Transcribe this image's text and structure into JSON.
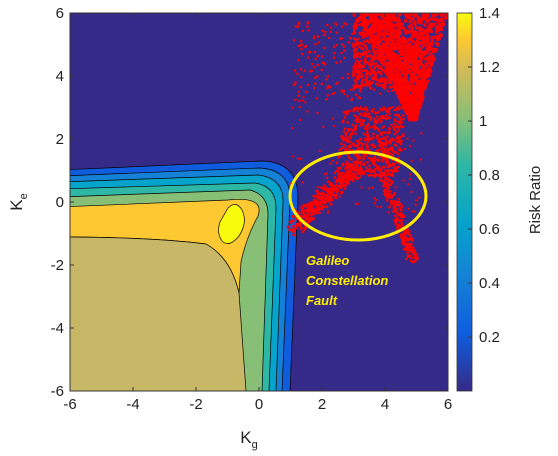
{
  "chart_data": {
    "type": "heatmap",
    "plot": "filled contour with scatter overlay",
    "xlabel_main": "K",
    "xlabel_sub": "g",
    "ylabel_main": "K",
    "ylabel_sub": "e",
    "xlim": [
      -6,
      6
    ],
    "ylim": [
      -6,
      6
    ],
    "x_ticks": [
      "-6",
      "-4",
      "-2",
      "0",
      "2",
      "4",
      "6"
    ],
    "y_ticks": [
      "6",
      "4",
      "2",
      "0",
      "-2",
      "-4",
      "-6"
    ],
    "colorbar": {
      "label": "Risk Ratio",
      "range": [
        0,
        1.4
      ],
      "ticks": [
        "1.4",
        "1.2",
        "1",
        "0.8",
        "0.6",
        "0.4",
        "0.2"
      ],
      "colormap": "parula"
    },
    "contour_levels": [
      0.2,
      0.4,
      0.6,
      0.8,
      1.0,
      1.2
    ],
    "scatter_color": "#ff0000",
    "annotation": {
      "lines": [
        "Galileo",
        "Constellation",
        "Fault"
      ],
      "color": "#ffee00",
      "ellipse_center": [
        3.05,
        0.3
      ],
      "ellipse_radii": [
        2.15,
        1.4
      ]
    }
  }
}
